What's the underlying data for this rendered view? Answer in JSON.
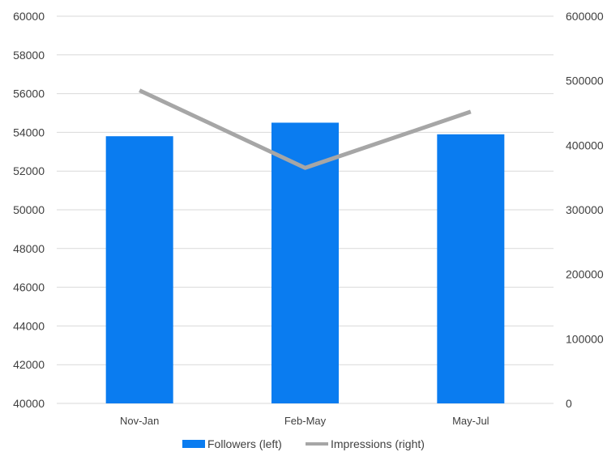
{
  "chart_data": {
    "type": "bar",
    "categories": [
      "Nov-Jan",
      "Feb-May",
      "May-Jul"
    ],
    "series": [
      {
        "name": "Followers (left)",
        "type": "bar",
        "axis": "left",
        "values": [
          53800,
          54500,
          53900
        ],
        "color": "#0a7cf0"
      },
      {
        "name": "Impressions (right)",
        "type": "line",
        "axis": "right",
        "values": [
          485000,
          365000,
          452000
        ],
        "color": "#a6a6a6"
      }
    ],
    "y_left": {
      "min": 40000,
      "max": 60000,
      "step": 2000,
      "ticks": [
        "40000",
        "42000",
        "44000",
        "46000",
        "48000",
        "50000",
        "52000",
        "54000",
        "56000",
        "58000",
        "60000"
      ]
    },
    "y_right": {
      "min": 0,
      "max": 600000,
      "step": 100000,
      "ticks": [
        "0",
        "100000",
        "200000",
        "300000",
        "400000",
        "500000",
        "600000"
      ]
    },
    "grid": true,
    "legend": {
      "position": "bottom",
      "items": [
        "Followers (left)",
        "Impressions (right)"
      ]
    },
    "title": "",
    "xlabel": "",
    "ylabel": ""
  }
}
